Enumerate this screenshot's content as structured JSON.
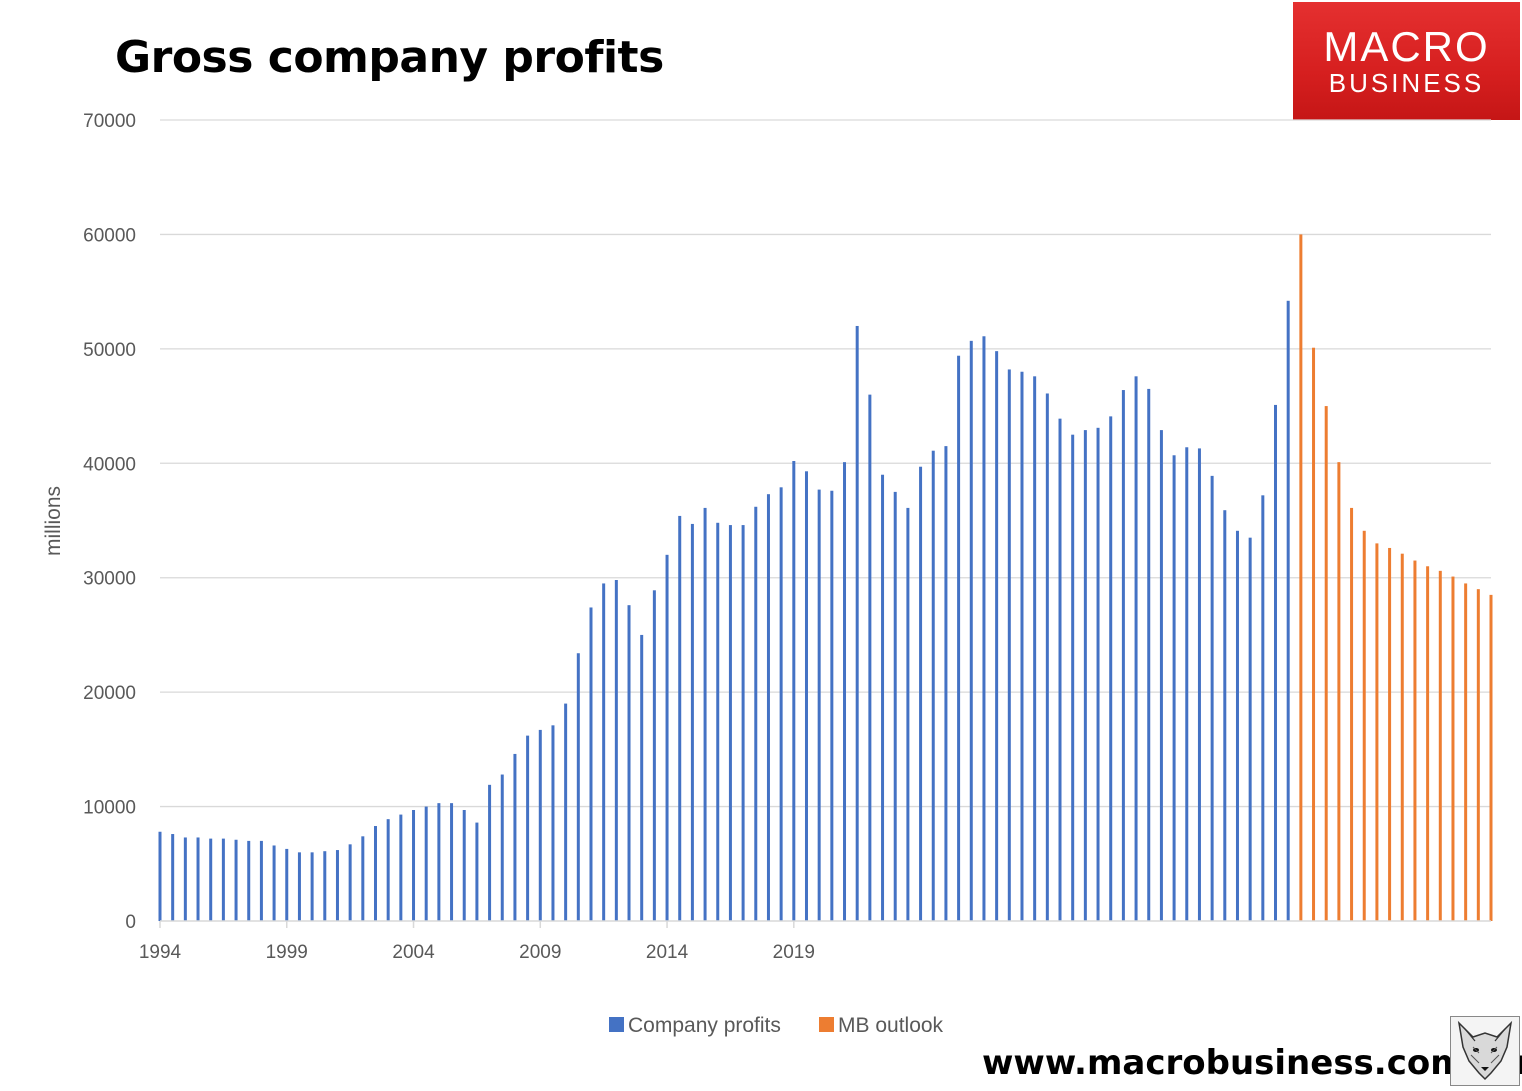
{
  "header": {
    "title": "Gross company profits"
  },
  "logo": {
    "line1": "MACRO",
    "line2": "BUSINESS"
  },
  "footer": {
    "website": "www.macrobusiness.com.au"
  },
  "colors": {
    "company_profits": "#4472C4",
    "mb_outlook": "#ED7D31",
    "grid": "#D9D9D9",
    "logo_red": "#D61F1F"
  },
  "chart_data": {
    "type": "bar",
    "title": "Gross company profits",
    "ylabel": "millions",
    "xlabel": "",
    "ylim": [
      0,
      70000
    ],
    "yticks": [
      0,
      10000,
      20000,
      30000,
      40000,
      50000,
      60000,
      70000
    ],
    "ytick_labels": [
      "0",
      "10000",
      "20000",
      "30000",
      "40000",
      "50000",
      "60000",
      "70000"
    ],
    "xticks": [
      1994,
      1999,
      2004,
      2009,
      2014,
      2019
    ],
    "xtick_labels": [
      "1994",
      "1999",
      "2004",
      "2009",
      "2014",
      "2019"
    ],
    "frequency": "semi-annual",
    "x_start": 1994,
    "legend_position": "bottom",
    "series": [
      {
        "name": "Company profits",
        "color": "#4472C4",
        "values": [
          7800,
          7600,
          7300,
          7300,
          7200,
          7200,
          7100,
          7000,
          7000,
          6600,
          6300,
          6000,
          6000,
          6100,
          6200,
          6700,
          7400,
          8300,
          8900,
          9300,
          9700,
          10000,
          10300,
          10300,
          9700,
          8600,
          11900,
          12800,
          14600,
          16200,
          16700,
          17100,
          19000,
          23400,
          27400,
          29500,
          29800,
          27600,
          25000,
          28900,
          32000,
          35400,
          34700,
          36100,
          34800,
          34600,
          34600,
          36200,
          37300,
          37900,
          40200,
          39300,
          37700,
          37600,
          40100,
          52000,
          46000,
          39000,
          37500,
          36100,
          39700,
          41100,
          41500,
          49400,
          50700,
          51100,
          49800,
          48200,
          48000,
          47600,
          46100,
          43900,
          42500,
          42900,
          43100,
          44100,
          46400,
          47600,
          46500,
          42900,
          40700,
          41400,
          41300,
          38900,
          35900,
          34100,
          33500,
          37200,
          45100,
          54200
        ]
      },
      {
        "name": "MB outlook",
        "color": "#ED7D31",
        "values": [
          60000,
          50100,
          45000,
          40100,
          36100,
          34100,
          33000,
          32600,
          32100,
          31500,
          31000,
          30600,
          30100,
          29500,
          29000,
          28500
        ]
      }
    ]
  }
}
